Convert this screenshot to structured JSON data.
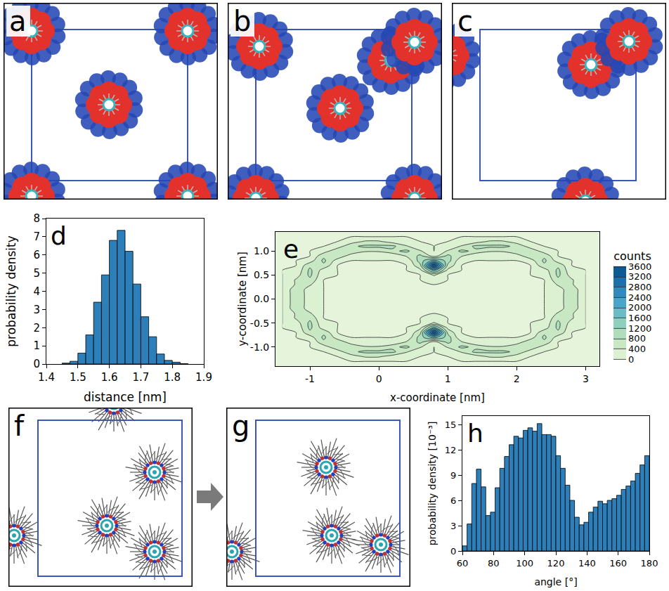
{
  "image_panels": [
    {
      "panel": "a"
    },
    {
      "panel": "b"
    },
    {
      "panel": "c"
    },
    {
      "panel": "f"
    },
    {
      "panel": "g"
    }
  ],
  "chart_data": [
    {
      "panel": "d",
      "type": "histogram",
      "x_label": "distance [nm]",
      "y_label": "probability density",
      "bins": [
        1.45,
        1.475,
        1.5,
        1.525,
        1.55,
        1.575,
        1.6,
        1.625,
        1.65,
        1.675,
        1.7,
        1.725,
        1.75,
        1.775,
        1.8,
        1.825,
        1.85
      ],
      "values": [
        0.05,
        0.15,
        0.6,
        1.6,
        3.4,
        4.9,
        6.8,
        7.35,
        6.2,
        4.4,
        2.6,
        1.5,
        0.55,
        0.2,
        0.1,
        0.02
      ],
      "color": "#2c7fb8",
      "xlim": [
        1.4,
        1.9
      ],
      "ylim": [
        0,
        8
      ],
      "xticks": [
        1.4,
        1.5,
        1.6,
        1.7,
        1.8,
        1.9
      ],
      "yticks": [
        0,
        1,
        2,
        3,
        4,
        5,
        6,
        7,
        8
      ],
      "grid": false
    },
    {
      "panel": "e",
      "type": "contour",
      "x_label": "x-coordinate [nm]",
      "y_label": "y-coordinate [nm]",
      "x": [
        -1.4,
        -1.2,
        -1.0,
        -0.8,
        -0.6,
        -0.4,
        -0.2,
        0,
        0.2,
        0.4,
        0.6,
        0.8,
        1.0,
        1.2,
        1.4,
        1.6,
        1.8,
        2.0,
        2.2,
        2.4,
        2.6,
        2.8,
        3.0
      ],
      "y": [
        -1.4,
        -1.3,
        -1.2,
        -1.1,
        -1.0,
        -0.9,
        -0.8,
        -0.7,
        -0.6,
        -0.5,
        -0.4,
        -0.3,
        -0.2,
        -0.1,
        0,
        0.1,
        0.2,
        0.3,
        0.4,
        0.5,
        0.6,
        0.7,
        0.8,
        0.9,
        1.0,
        1.1,
        1.2,
        1.3,
        1.4
      ],
      "z": [
        [
          0,
          0,
          0,
          0,
          0,
          0,
          0,
          0,
          0,
          0,
          0,
          0,
          0,
          0,
          0,
          0,
          0,
          0,
          0,
          0,
          0,
          0,
          0
        ],
        [
          0,
          0,
          0,
          0,
          0,
          0,
          0,
          0,
          0,
          0,
          0,
          0,
          0,
          0,
          0,
          0,
          0,
          0,
          0,
          0,
          0,
          0,
          0
        ],
        [
          0,
          0,
          0,
          0,
          0,
          200,
          450,
          450,
          200,
          50,
          0,
          0,
          0,
          50,
          200,
          450,
          450,
          200,
          0,
          0,
          0,
          0,
          0
        ],
        [
          0,
          0,
          0,
          0,
          200,
          700,
          900,
          900,
          900,
          450,
          50,
          0,
          50,
          450,
          900,
          900,
          900,
          700,
          200,
          0,
          0,
          0,
          0
        ],
        [
          0,
          0,
          0,
          200,
          700,
          700,
          450,
          450,
          700,
          900,
          450,
          0,
          450,
          900,
          700,
          450,
          450,
          700,
          700,
          200,
          0,
          0,
          0
        ],
        [
          0,
          0,
          0,
          700,
          700,
          200,
          50,
          50,
          50,
          450,
          900,
          200,
          900,
          450,
          50,
          50,
          50,
          200,
          700,
          700,
          0,
          0,
          0
        ],
        [
          0,
          0,
          200,
          900,
          200,
          0,
          0,
          0,
          0,
          50,
          1000,
          1800,
          1000,
          50,
          0,
          0,
          0,
          0,
          200,
          900,
          200,
          0,
          0
        ],
        [
          0,
          0,
          700,
          700,
          0,
          0,
          0,
          0,
          0,
          0,
          700,
          3600,
          700,
          0,
          0,
          0,
          0,
          0,
          0,
          700,
          700,
          0,
          0
        ],
        [
          0,
          50,
          900,
          200,
          0,
          0,
          0,
          0,
          0,
          0,
          300,
          1800,
          300,
          0,
          0,
          0,
          0,
          0,
          0,
          200,
          900,
          50,
          0
        ],
        [
          0,
          200,
          900,
          50,
          0,
          0,
          0,
          0,
          0,
          0,
          0,
          450,
          0,
          0,
          0,
          0,
          0,
          0,
          0,
          50,
          900,
          200,
          0
        ],
        [
          0,
          450,
          700,
          0,
          0,
          0,
          0,
          0,
          0,
          0,
          0,
          50,
          0,
          0,
          0,
          0,
          0,
          0,
          0,
          0,
          700,
          450,
          0
        ],
        [
          0,
          450,
          450,
          0,
          0,
          0,
          0,
          0,
          0,
          0,
          0,
          0,
          0,
          0,
          0,
          0,
          0,
          0,
          0,
          0,
          450,
          450,
          0
        ],
        [
          0,
          700,
          200,
          0,
          0,
          0,
          0,
          0,
          0,
          0,
          0,
          0,
          0,
          0,
          0,
          0,
          0,
          0,
          0,
          0,
          200,
          700,
          0
        ],
        [
          0,
          700,
          200,
          0,
          0,
          0,
          0,
          0,
          0,
          0,
          0,
          0,
          0,
          0,
          0,
          0,
          0,
          0,
          0,
          0,
          200,
          700,
          0
        ],
        [
          0,
          700,
          200,
          0,
          0,
          0,
          0,
          0,
          0,
          0,
          0,
          0,
          0,
          0,
          0,
          0,
          0,
          0,
          0,
          0,
          200,
          700,
          0
        ],
        [
          0,
          700,
          200,
          0,
          0,
          0,
          0,
          0,
          0,
          0,
          0,
          0,
          0,
          0,
          0,
          0,
          0,
          0,
          0,
          0,
          200,
          700,
          0
        ],
        [
          0,
          700,
          200,
          0,
          0,
          0,
          0,
          0,
          0,
          0,
          0,
          0,
          0,
          0,
          0,
          0,
          0,
          0,
          0,
          0,
          200,
          700,
          0
        ],
        [
          0,
          450,
          450,
          0,
          0,
          0,
          0,
          0,
          0,
          0,
          0,
          0,
          0,
          0,
          0,
          0,
          0,
          0,
          0,
          0,
          450,
          450,
          0
        ],
        [
          0,
          450,
          700,
          0,
          0,
          0,
          0,
          0,
          0,
          0,
          0,
          50,
          0,
          0,
          0,
          0,
          0,
          0,
          0,
          0,
          700,
          450,
          0
        ],
        [
          0,
          200,
          900,
          50,
          0,
          0,
          0,
          0,
          0,
          0,
          0,
          450,
          0,
          0,
          0,
          0,
          0,
          0,
          0,
          50,
          900,
          200,
          0
        ],
        [
          0,
          50,
          900,
          200,
          0,
          0,
          0,
          0,
          0,
          0,
          300,
          1800,
          300,
          0,
          0,
          0,
          0,
          0,
          0,
          200,
          900,
          50,
          0
        ],
        [
          0,
          0,
          700,
          700,
          0,
          0,
          0,
          0,
          0,
          0,
          700,
          3600,
          700,
          0,
          0,
          0,
          0,
          0,
          0,
          700,
          700,
          0,
          0
        ],
        [
          0,
          0,
          200,
          900,
          200,
          0,
          0,
          0,
          0,
          50,
          1000,
          1800,
          1000,
          50,
          0,
          0,
          0,
          0,
          200,
          900,
          200,
          0,
          0
        ],
        [
          0,
          0,
          0,
          700,
          700,
          200,
          50,
          50,
          50,
          450,
          900,
          200,
          900,
          450,
          50,
          50,
          50,
          200,
          700,
          700,
          0,
          0,
          0
        ],
        [
          0,
          0,
          0,
          200,
          700,
          700,
          450,
          450,
          700,
          900,
          450,
          0,
          450,
          900,
          700,
          450,
          450,
          700,
          700,
          200,
          0,
          0,
          0
        ],
        [
          0,
          0,
          0,
          0,
          200,
          700,
          900,
          900,
          900,
          450,
          50,
          0,
          50,
          450,
          900,
          900,
          900,
          700,
          200,
          0,
          0,
          0,
          0
        ],
        [
          0,
          0,
          0,
          0,
          0,
          200,
          450,
          450,
          200,
          50,
          0,
          0,
          0,
          50,
          200,
          450,
          450,
          200,
          0,
          0,
          0,
          0,
          0
        ],
        [
          0,
          0,
          0,
          0,
          0,
          0,
          0,
          0,
          0,
          0,
          0,
          0,
          0,
          0,
          0,
          0,
          0,
          0,
          0,
          0,
          0,
          0,
          0
        ],
        [
          0,
          0,
          0,
          0,
          0,
          0,
          0,
          0,
          0,
          0,
          0,
          0,
          0,
          0,
          0,
          0,
          0,
          0,
          0,
          0,
          0,
          0,
          0
        ]
      ],
      "xlim": [
        -1.5,
        3.2
      ],
      "ylim": [
        -1.4,
        1.4
      ],
      "xticks": [
        -1,
        0,
        1,
        2,
        3
      ],
      "yticks": [
        {
          "value": -1,
          "label": "-1.0"
        },
        {
          "value": -0.5,
          "label": "-0.5"
        },
        {
          "value": 0,
          "label": "0.0"
        },
        {
          "value": 0.5,
          "label": "0.5"
        },
        {
          "value": 1,
          "label": "1.0"
        }
      ],
      "colorbar_title": "counts",
      "colorbar_range": [
        0,
        3600
      ],
      "colorbar_ticks": [
        0,
        400,
        800,
        1200,
        1600,
        2000,
        2400,
        2800,
        3200,
        3600
      ],
      "grid": false
    },
    {
      "panel": "h",
      "type": "histogram",
      "x_label": "angle [°]",
      "y_label": "probability density [10⁻³]",
      "bins": [
        60,
        63,
        66,
        69,
        72,
        75,
        78,
        81,
        84,
        87,
        90,
        93,
        96,
        99,
        102,
        105,
        108,
        111,
        114,
        117,
        120,
        123,
        126,
        129,
        132,
        135,
        138,
        141,
        144,
        147,
        150,
        153,
        156,
        159,
        162,
        165,
        168,
        171,
        174,
        177,
        180
      ],
      "values": [
        0.6,
        3.2,
        8.0,
        9.7,
        7.6,
        4.2,
        4.6,
        7.5,
        9.8,
        11.2,
        12.6,
        13.6,
        13.4,
        14.3,
        14.6,
        14.2,
        15.1,
        13.8,
        13.8,
        13.6,
        11.3,
        9.8,
        7.8,
        6.0,
        4.0,
        3.1,
        3.4,
        4.6,
        5.2,
        5.9,
        5.6,
        6.0,
        6.2,
        6.6,
        7.3,
        7.7,
        8.3,
        9.2,
        10.2,
        11.3
      ],
      "color": "#2c7fb8",
      "xlim": [
        60,
        180
      ],
      "ylim": [
        0,
        16
      ],
      "xticks": [
        60,
        80,
        100,
        120,
        140,
        160,
        180
      ],
      "yticks": [
        0,
        3,
        6,
        9,
        12,
        15
      ],
      "grid": false
    }
  ]
}
